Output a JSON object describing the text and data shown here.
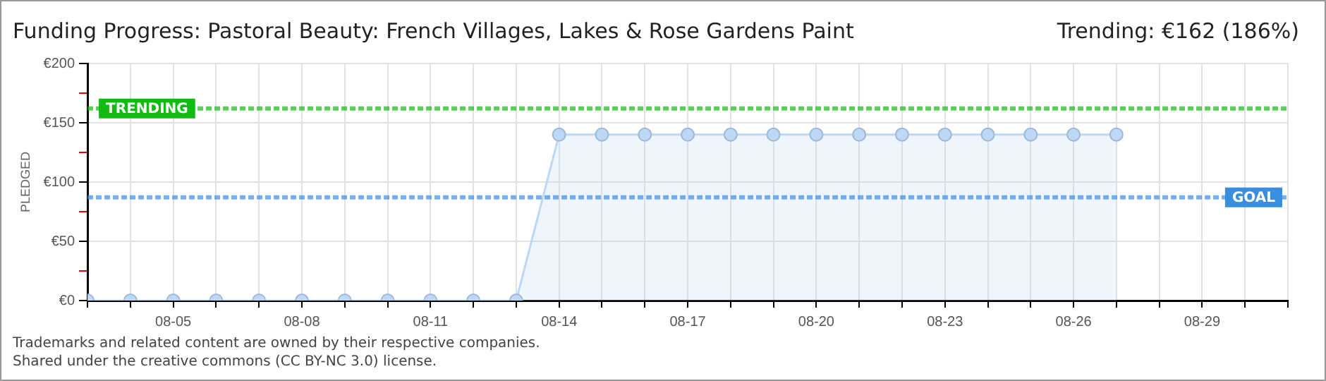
{
  "chart_data": {
    "type": "area",
    "title": "Funding Progress: Pastoral Beauty: French Villages, Lakes & Rose Gardens Paint",
    "ylabel": "PLEDGED",
    "annotations": [
      "Trending:  €162 (186%)",
      "Trademarks and related content are owned by their respective companies.",
      "Shared under the creative commons (CC BY-NC 3.0) license."
    ],
    "x": [
      "--08-03",
      "--08-04",
      "--08-05",
      "--08-06",
      "--08-07",
      "--08-08",
      "--08-09",
      "--08-10",
      "--08-11",
      "--08-12",
      "--08-13",
      "--08-14",
      "--08-15",
      "--08-16",
      "--08-17",
      "--08-18",
      "--08-19",
      "--08-20",
      "--08-21",
      "--08-22",
      "--08-23",
      "--08-24",
      "--08-25",
      "--08-26",
      "--08-27"
    ],
    "series": [
      {
        "color": "#bcd8f6",
        "values": [
          0,
          0,
          0,
          0,
          0,
          0,
          0,
          0,
          0,
          0,
          0,
          140,
          140,
          140,
          140,
          140,
          140,
          140,
          140,
          140,
          140,
          140,
          140,
          140,
          140
        ]
      }
    ],
    "xlim": [
      "--08-03",
      "--08-31"
    ],
    "xticks": [
      {
        "value": "--08-03",
        "label": null
      },
      {
        "value": "--08-04",
        "label": null
      },
      {
        "value": "--08-05",
        "label": "08-05"
      },
      {
        "value": "--08-06",
        "label": null
      },
      {
        "value": "--08-07",
        "label": null
      },
      {
        "value": "--08-08",
        "label": "08-08"
      },
      {
        "value": "--08-09",
        "label": null
      },
      {
        "value": "--08-10",
        "label": null
      },
      {
        "value": "--08-11",
        "label": "08-11"
      },
      {
        "value": "--08-12",
        "label": null
      },
      {
        "value": "--08-13",
        "label": null
      },
      {
        "value": "--08-14",
        "label": "08-14"
      },
      {
        "value": "--08-15",
        "label": null
      },
      {
        "value": "--08-16",
        "label": null
      },
      {
        "value": "--08-17",
        "label": "08-17"
      },
      {
        "value": "--08-18",
        "label": null
      },
      {
        "value": "--08-19",
        "label": null
      },
      {
        "value": "--08-20",
        "label": "08-20"
      },
      {
        "value": "--08-21",
        "label": null
      },
      {
        "value": "--08-22",
        "label": null
      },
      {
        "value": "--08-23",
        "label": "08-23"
      },
      {
        "value": "--08-24",
        "label": null
      },
      {
        "value": "--08-25",
        "label": null
      },
      {
        "value": "--08-26",
        "label": "08-26"
      },
      {
        "value": "--08-27",
        "label": null
      },
      {
        "value": "--08-28",
        "label": null
      },
      {
        "value": "--08-29",
        "label": "08-29"
      },
      {
        "value": "--08-30",
        "label": null
      },
      {
        "value": "--08-31",
        "label": null
      }
    ],
    "ylim": [
      0,
      200
    ],
    "yticks": [
      {
        "value": 0,
        "label": "€0"
      },
      {
        "value": 25,
        "label": null
      },
      {
        "value": 50,
        "label": "€50"
      },
      {
        "value": 75,
        "label": null
      },
      {
        "value": 100,
        "label": "€100"
      },
      {
        "value": 125,
        "label": null
      },
      {
        "value": 150,
        "label": "€150"
      },
      {
        "value": 175,
        "label": null
      },
      {
        "value": 200,
        "label": "€200"
      }
    ],
    "ref_lines": [
      {
        "axis": "y",
        "value": 162,
        "label": "TRENDING",
        "color": "#11bb11",
        "line_style": "dashed"
      },
      {
        "axis": "y",
        "value": 87,
        "label": "GOAL",
        "color": "#3a8ee0",
        "line_style": "dashed"
      }
    ],
    "grid": true,
    "legend": false,
    "marker": "circle"
  }
}
